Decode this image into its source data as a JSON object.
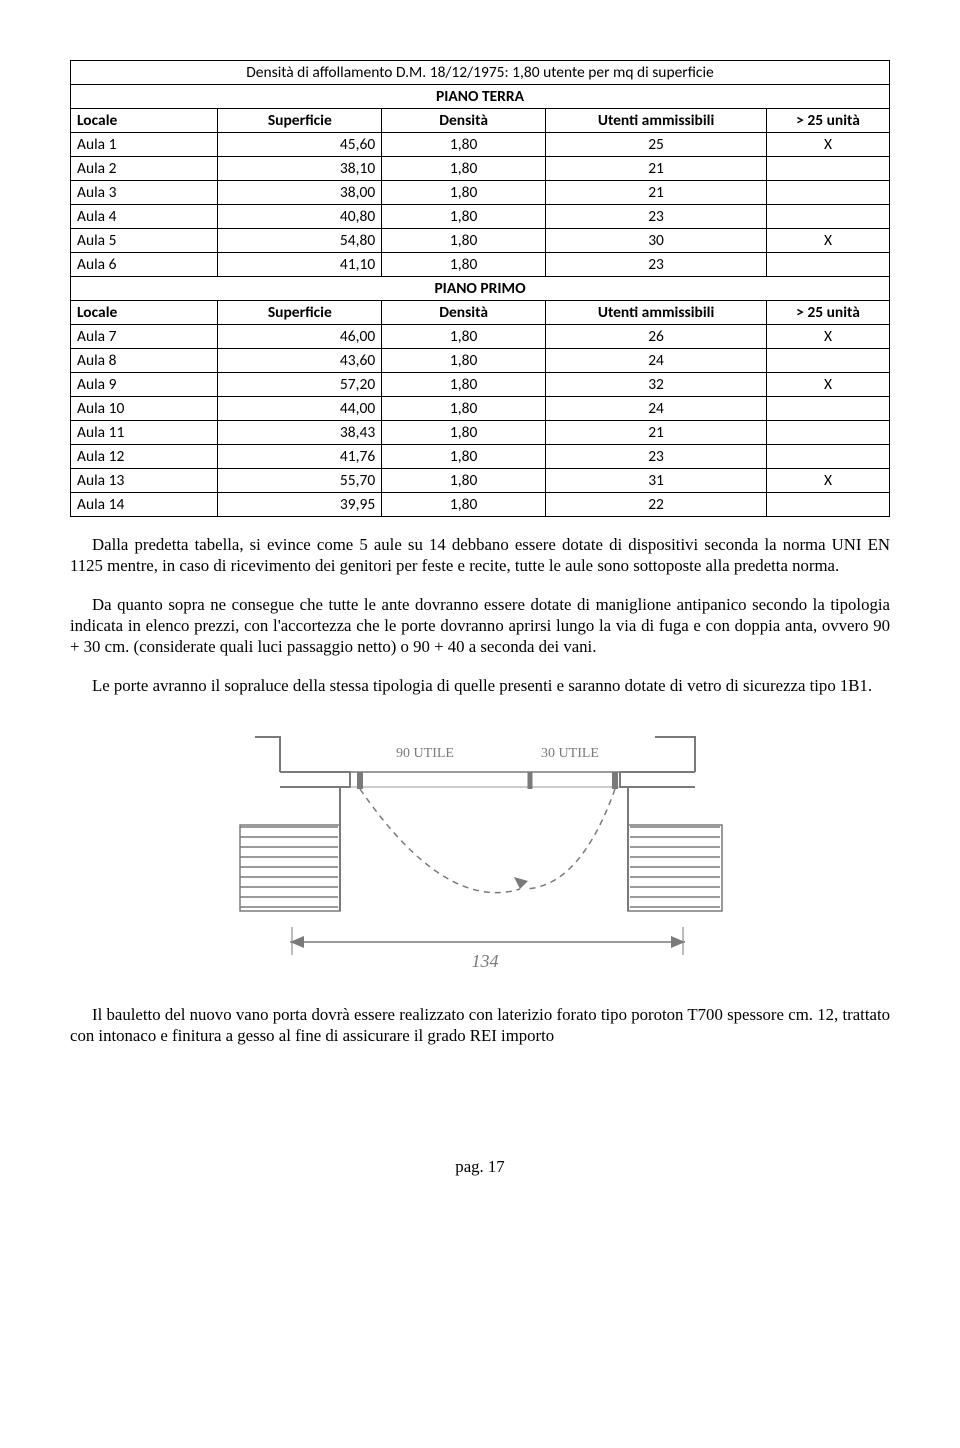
{
  "table": {
    "title": "Densità di affollamento D.M. 18/12/1975: 1,80 utente per mq di superficie",
    "section1": "PIANO TERRA",
    "section2": "PIANO PRIMO",
    "headers": {
      "locale": "Locale",
      "superficie": "Superficie",
      "densita": "Densità",
      "utenti": "Utenti ammissibili",
      "over25": "> 25 unità"
    },
    "rows1": [
      {
        "locale": "Aula 1",
        "sup": "45,60",
        "den": "1,80",
        "ut": "25",
        "x": "X"
      },
      {
        "locale": "Aula 2",
        "sup": "38,10",
        "den": "1,80",
        "ut": "21",
        "x": ""
      },
      {
        "locale": "Aula 3",
        "sup": "38,00",
        "den": "1,80",
        "ut": "21",
        "x": ""
      },
      {
        "locale": "Aula 4",
        "sup": "40,80",
        "den": "1,80",
        "ut": "23",
        "x": ""
      },
      {
        "locale": "Aula 5",
        "sup": "54,80",
        "den": "1,80",
        "ut": "30",
        "x": "X"
      },
      {
        "locale": "Aula 6",
        "sup": "41,10",
        "den": "1,80",
        "ut": "23",
        "x": ""
      }
    ],
    "rows2": [
      {
        "locale": "Aula 7",
        "sup": "46,00",
        "den": "1,80",
        "ut": "26",
        "x": "X"
      },
      {
        "locale": "Aula 8",
        "sup": "43,60",
        "den": "1,80",
        "ut": "24",
        "x": ""
      },
      {
        "locale": "Aula 9",
        "sup": "57,20",
        "den": "1,80",
        "ut": "32",
        "x": "X"
      },
      {
        "locale": "Aula 10",
        "sup": "44,00",
        "den": "1,80",
        "ut": "24",
        "x": ""
      },
      {
        "locale": "Aula 11",
        "sup": "38,43",
        "den": "1,80",
        "ut": "21",
        "x": ""
      },
      {
        "locale": "Aula 12",
        "sup": "41,76",
        "den": "1,80",
        "ut": "23",
        "x": ""
      },
      {
        "locale": "Aula 13",
        "sup": "55,70",
        "den": "1,80",
        "ut": "31",
        "x": "X"
      },
      {
        "locale": "Aula 14",
        "sup": "39,95",
        "den": "1,80",
        "ut": "22",
        "x": ""
      }
    ]
  },
  "paragraphs": {
    "p1": "Dalla predetta tabella, si evince come 5 aule su 14 debbano essere dotate di dispositivi seconda la norma UNI EN 1125 mentre, in caso di ricevimento dei genitori per feste e recite, tutte le aule sono sottoposte alla predetta norma.",
    "p2": "Da quanto sopra ne consegue che tutte le ante dovranno essere dotate di maniglione antipanico secondo la tipologia indicata in elenco prezzi, con l'accortezza che le porte dovranno aprirsi lungo la via di fuga e con doppia anta, ovvero 90 + 30 cm. (considerate quali luci passaggio netto) o 90 + 40 a seconda dei vani.",
    "p3": "Le porte avranno il sopraluce della stessa tipologia di quelle presenti e saranno dotate di vetro di sicurezza tipo 1B1.",
    "p4": "Il bauletto del nuovo vano porta dovrà essere realizzato con laterizio forato tipo poroton T700 spessore cm. 12, trattato con intonaco e finitura a gesso al fine di assicurare il grado REI importo"
  },
  "sketch": {
    "label_left": "90 UTILE",
    "label_right": "30 UTILE",
    "dim_label": "134",
    "stroke": "#7a7a7a",
    "stroke_light": "#9a9a9a"
  },
  "page": "pag. 17"
}
